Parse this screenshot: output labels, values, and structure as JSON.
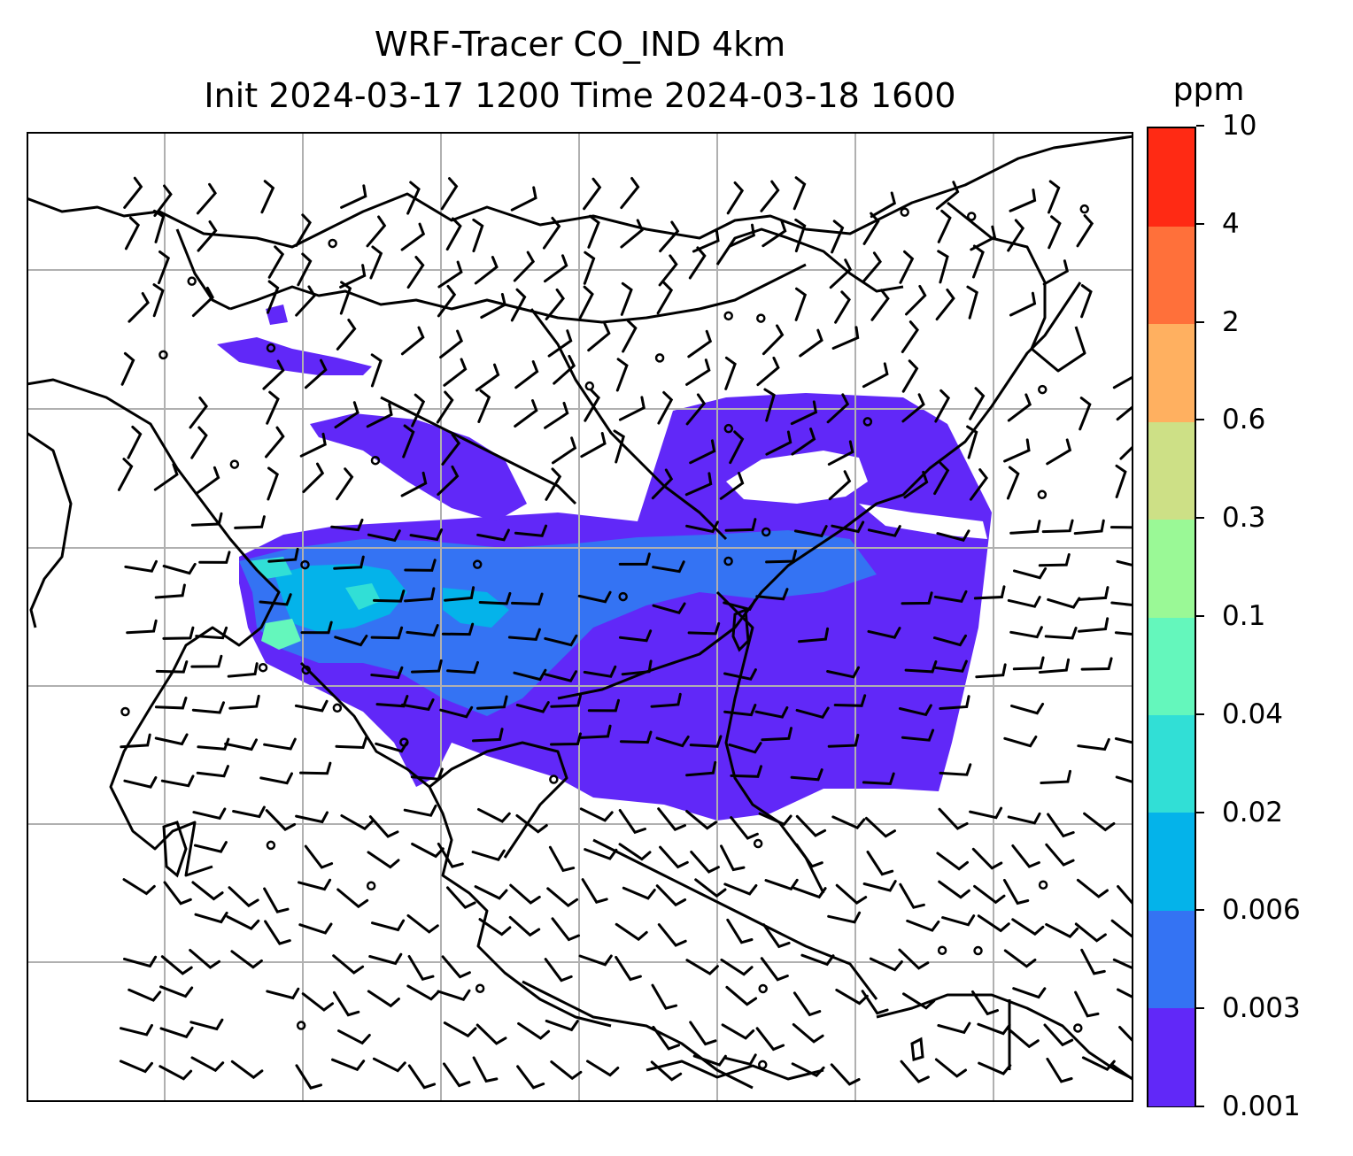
{
  "title": {
    "line1": "WRF-Tracer CO_IND 4km",
    "line2": "Init 2024-03-17 1200 Time 2024-03-18 1600"
  },
  "colorbar": {
    "unit": "ppm",
    "levels": [
      "0.001",
      "0.003",
      "0.006",
      "0.02",
      "0.04",
      "0.1",
      "0.3",
      "0.6",
      "2",
      "4",
      "10"
    ],
    "colors": [
      "#6128f8",
      "#3473f3",
      "#04b3ea",
      "#31dfd6",
      "#64f7bc",
      "#9af996",
      "#cde086",
      "#ffb060",
      "#ff703a",
      "#ff2a14"
    ]
  },
  "map": {
    "gridlines": true,
    "land_outline_color": "#000000",
    "grid_color": "#b0b0b0",
    "wind_barb_color": "#000000"
  }
}
